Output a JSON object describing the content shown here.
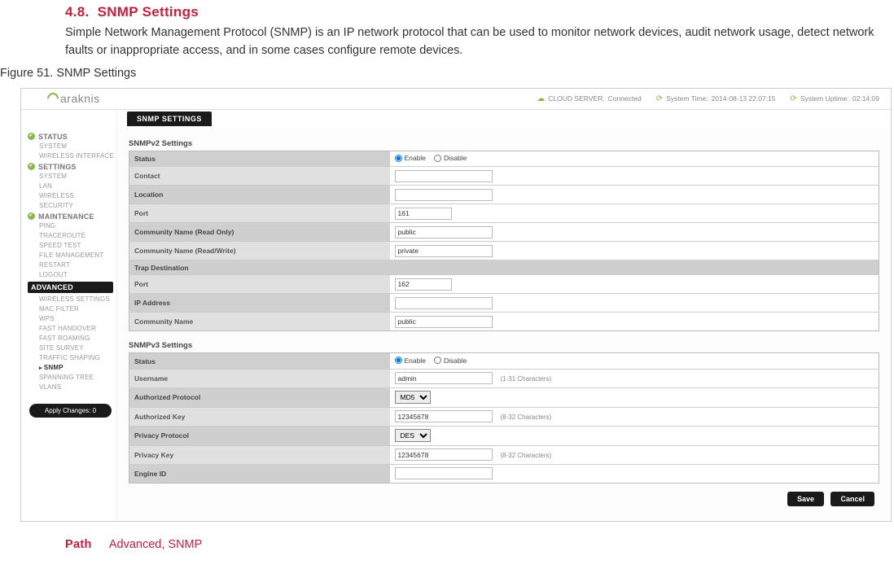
{
  "doc": {
    "section_number": "4.8.",
    "section_title": "SNMP Settings",
    "description": "Simple Network Management Protocol (SNMP) is an IP network protocol that can be used to monitor network devices, audit network usage, detect network faults or inappropriate access, and in some cases configure remote devices.",
    "figure_caption": "Figure 51. SNMP Settings",
    "path_label": "Path",
    "path_value": "Advanced, SNMP"
  },
  "logo": {
    "name": "araknis"
  },
  "status_bar": {
    "cloud_label": "CLOUD SERVER:",
    "cloud_value": "Connected",
    "time_label": "System Time:",
    "time_value": "2014-08-13 22:07:15",
    "uptime_label": "System Uptime:",
    "uptime_value": "02:14:09"
  },
  "sidebar": {
    "sections": [
      {
        "tag": "STATUS",
        "active": false,
        "items": [
          "SYSTEM",
          "WIRELESS INTERFACE"
        ]
      },
      {
        "tag": "SETTINGS",
        "active": false,
        "items": [
          "SYSTEM",
          "LAN",
          "WIRELESS",
          "SECURITY"
        ]
      },
      {
        "tag": "MAINTENANCE",
        "active": false,
        "items": [
          "PING",
          "TRACEROUTE",
          "SPEED TEST",
          "FILE MANAGEMENT",
          "RESTART",
          "LOGOUT"
        ]
      },
      {
        "tag": "ADVANCED",
        "active": true,
        "items": [
          "WIRELESS SETTINGS",
          "MAC FILTER",
          "WPS",
          "FAST HANDOVER",
          "FAST ROAMING",
          "SITE SURVEY",
          "TRAFFIC SHAPING",
          "SNMP",
          "SPANNING TREE",
          "VLANS"
        ],
        "selected": "SNMP"
      }
    ],
    "apply": "Apply Changes: 0"
  },
  "page": {
    "title_pill": "SNMP SETTINGS",
    "v2": {
      "title": "SNMPv2 Settings",
      "rows": [
        {
          "label": "Status",
          "type": "radio",
          "opt1": "Enable",
          "opt2": "Disable",
          "checked": 1
        },
        {
          "label": "Contact",
          "type": "text",
          "value": "",
          "w": "med"
        },
        {
          "label": "Location",
          "type": "text",
          "value": "",
          "w": "med"
        },
        {
          "label": "Port",
          "type": "text",
          "value": "161",
          "w": "tiny"
        },
        {
          "label": "Community Name (Read Only)",
          "type": "text",
          "value": "public",
          "w": "med"
        },
        {
          "label": "Community Name (Read/Write)",
          "type": "text",
          "value": "private",
          "w": "med"
        },
        {
          "label": "Trap Destination",
          "type": "header"
        },
        {
          "label": "Port",
          "type": "text",
          "value": "162",
          "w": "tiny"
        },
        {
          "label": "IP Address",
          "type": "text",
          "value": "",
          "w": "med"
        },
        {
          "label": "Community Name",
          "type": "text",
          "value": "public",
          "w": "med"
        }
      ]
    },
    "v3": {
      "title": "SNMPv3 Settings",
      "rows": [
        {
          "label": "Status",
          "type": "radio",
          "opt1": "Enable",
          "opt2": "Disable",
          "checked": 1
        },
        {
          "label": "Username",
          "type": "text",
          "value": "admin",
          "w": "med",
          "hint": "(1-31 Characters)"
        },
        {
          "label": "Authorized Protocol",
          "type": "select",
          "value": "MD5"
        },
        {
          "label": "Authorized Key",
          "type": "text",
          "value": "12345678",
          "w": "med",
          "hint": "(8-32 Characters)"
        },
        {
          "label": "Privacy Protocol",
          "type": "select",
          "value": "DES"
        },
        {
          "label": "Privacy Key",
          "type": "text",
          "value": "12345678",
          "w": "med",
          "hint": "(8-32 Characters)"
        },
        {
          "label": "Engine ID",
          "type": "text",
          "value": "",
          "w": "med"
        }
      ]
    },
    "buttons": {
      "save": "Save",
      "cancel": "Cancel"
    }
  }
}
